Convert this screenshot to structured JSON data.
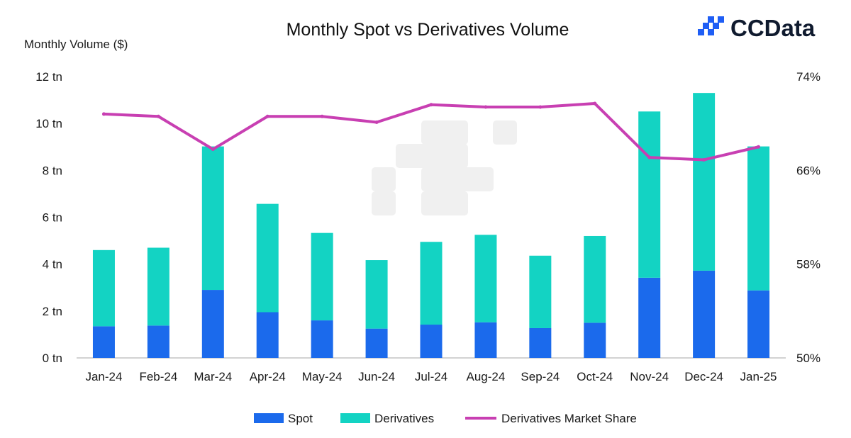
{
  "logo": {
    "text": "CCData",
    "color": "#1f5ef5"
  },
  "colors": {
    "spot": "#1b6aec",
    "derivatives": "#13d3c3",
    "share": "#c83fb2",
    "axis": "#b8b8b8",
    "watermark": "#f0f0f0"
  },
  "chart_data": {
    "type": "bar",
    "stacked": true,
    "title": "Monthly Spot vs Derivatives Volume",
    "ylabel": "Monthly Volume ($)",
    "categories": [
      "Jan-24",
      "Feb-24",
      "Mar-24",
      "Apr-24",
      "May-24",
      "Jun-24",
      "Jul-24",
      "Aug-24",
      "Sep-24",
      "Oct-24",
      "Nov-24",
      "Dec-24",
      "Jan-25"
    ],
    "series": [
      {
        "name": "Spot",
        "type": "bar",
        "axis": "left",
        "unit": "tn",
        "values": [
          1.35,
          1.38,
          2.9,
          1.95,
          1.6,
          1.25,
          1.42,
          1.52,
          1.27,
          1.5,
          3.42,
          3.72,
          2.88
        ]
      },
      {
        "name": "Derivatives",
        "type": "bar",
        "axis": "left",
        "unit": "tn",
        "values": [
          3.25,
          3.32,
          6.12,
          4.62,
          3.73,
          2.92,
          3.53,
          3.73,
          3.09,
          3.7,
          7.09,
          7.58,
          6.14
        ]
      },
      {
        "name": "Derivatives Market Share",
        "type": "line",
        "axis": "right",
        "unit": "%",
        "values": [
          70.8,
          70.6,
          67.8,
          70.6,
          70.6,
          70.1,
          71.6,
          71.4,
          71.4,
          71.7,
          67.1,
          66.9,
          68.0
        ]
      }
    ],
    "y_left": {
      "min": 0,
      "max": 12,
      "ticks": [
        "0 tn",
        "2 tn",
        "4 tn",
        "6 tn",
        "8 tn",
        "10 tn",
        "12 tn"
      ]
    },
    "y_right": {
      "min": 50,
      "max": 74,
      "ticks": [
        "50%",
        "58%",
        "66%",
        "74%"
      ]
    },
    "legend": {
      "position": "bottom",
      "items": [
        "Spot",
        "Derivatives",
        "Derivatives Market Share"
      ]
    },
    "grid": false
  }
}
